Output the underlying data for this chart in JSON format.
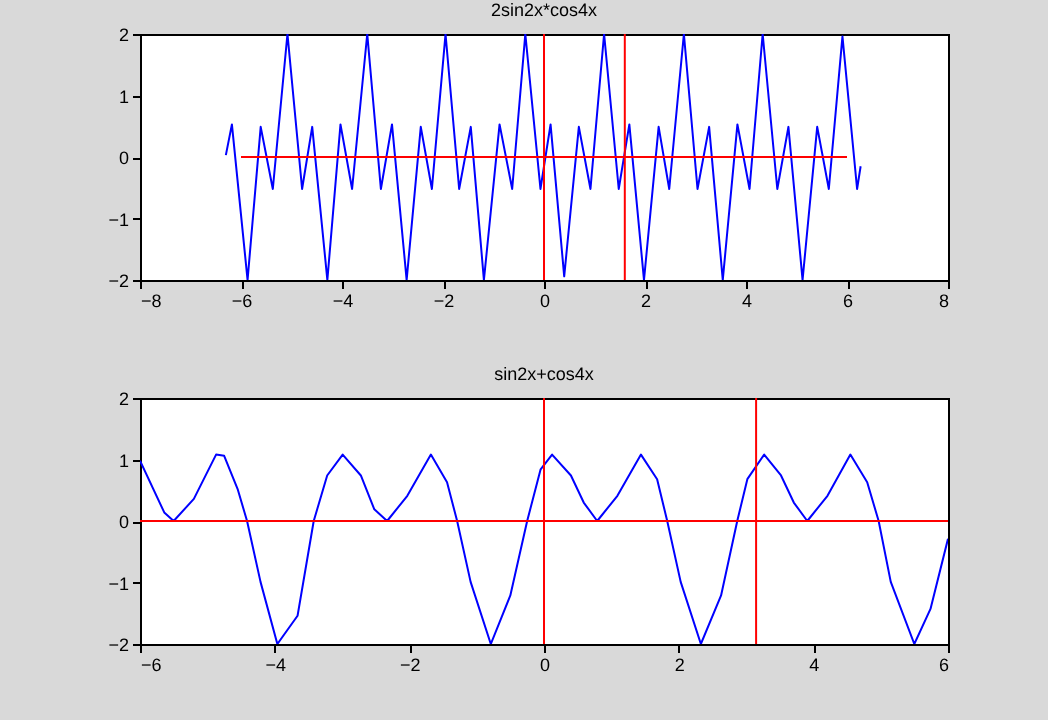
{
  "chart_data": [
    {
      "type": "line",
      "title": "2sin2x*cos4x",
      "xlim": [
        -8,
        8
      ],
      "xticks": [
        -8,
        -6,
        -4,
        -2,
        0,
        2,
        4,
        6,
        8
      ],
      "ylim": [
        -2,
        2
      ],
      "yticks": [
        -2,
        -1,
        0,
        1,
        2
      ],
      "grid": false,
      "series": [
        {
          "color": "#0000ff",
          "x": [
            -6.3,
            -6.18,
            -5.87,
            -5.61,
            -5.37,
            -5.08,
            -4.79,
            -4.59,
            -4.29,
            -4.03,
            -3.8,
            -3.5,
            -3.23,
            -3.01,
            -2.72,
            -2.44,
            -2.22,
            -1.95,
            -1.68,
            -1.45,
            -1.19,
            -0.88,
            -0.63,
            -0.37,
            -0.07,
            0.13,
            0.4,
            0.69,
            0.92,
            1.19,
            1.48,
            1.69,
            1.98,
            2.27,
            2.48,
            2.77,
            3.04,
            3.27,
            3.54,
            3.83,
            4.07,
            4.33,
            4.62,
            4.84,
            5.12,
            5.41,
            5.64,
            5.91,
            6.2,
            6.27
          ],
          "values": [
            0.03,
            0.53,
            -2,
            0.49,
            -0.52,
            2,
            -0.52,
            0.49,
            -2,
            0.53,
            -0.52,
            2,
            -0.52,
            0.53,
            -2,
            0.49,
            -0.52,
            2,
            -0.52,
            0.49,
            -2,
            0.53,
            -0.52,
            2,
            -0.52,
            0.53,
            -1.94,
            0.49,
            -0.52,
            2,
            -0.52,
            0.53,
            -2,
            0.49,
            -0.52,
            2,
            -0.52,
            0.49,
            -2,
            0.53,
            -0.52,
            2,
            -0.52,
            0.49,
            -2,
            0.49,
            -0.52,
            1.96,
            -0.52,
            -0.15
          ]
        },
        {
          "color": "#ff0000",
          "x": [
            -6,
            6
          ],
          "values": [
            0,
            0
          ]
        }
      ],
      "ref_lines": [
        {
          "axis": "x",
          "value": 0,
          "color": "#ff0000"
        },
        {
          "axis": "x",
          "value": 1.6,
          "color": "#ff0000"
        }
      ]
    },
    {
      "type": "line",
      "title": "sin2x+cos4x",
      "xlim": [
        -6,
        6
      ],
      "xticks": [
        -6,
        -4,
        -2,
        0,
        2,
        4,
        6
      ],
      "ylim": [
        -2,
        2
      ],
      "yticks": [
        -2,
        -1,
        0,
        1,
        2
      ],
      "grid": false,
      "series": [
        {
          "color": "#0000ff",
          "x": [
            -6,
            -5.64,
            -5.5,
            -5.2,
            -4.87,
            -4.75,
            -4.55,
            -4.41,
            -4.21,
            -3.96,
            -3.66,
            -3.42,
            -3.22,
            -2.99,
            -2.72,
            -2.52,
            -2.33,
            -2.03,
            -1.68,
            -1.44,
            -1.29,
            -1.09,
            -0.79,
            -0.5,
            -0.25,
            -0.05,
            0.12,
            0.4,
            0.59,
            0.79,
            1.09,
            1.44,
            1.68,
            1.83,
            2.03,
            2.33,
            2.63,
            2.87,
            3.02,
            3.27,
            3.52,
            3.71,
            3.91,
            4.21,
            4.55,
            4.8,
            4.97,
            5.15,
            5.5,
            5.74,
            6
          ],
          "values": [
            0.98,
            0.14,
            0,
            0.36,
            1.08,
            1.06,
            0.52,
            0,
            -0.99,
            -2,
            -1.54,
            0,
            0.74,
            1.08,
            0.74,
            0.19,
            0,
            0.41,
            1.08,
            0.63,
            0,
            -0.99,
            -2,
            -1.21,
            0,
            0.84,
            1.08,
            0.74,
            0.3,
            0,
            0.41,
            1.08,
            0.68,
            0,
            -0.99,
            -2,
            -1.21,
            0,
            0.68,
            1.08,
            0.74,
            0.3,
            0,
            0.41,
            1.08,
            0.63,
            0,
            -0.99,
            -2,
            -1.43,
            -0.29
          ]
        }
      ],
      "ref_lines": [
        {
          "axis": "y",
          "value": 0,
          "color": "#ff0000"
        },
        {
          "axis": "x",
          "value": 0,
          "color": "#ff0000"
        },
        {
          "axis": "x",
          "value": 3.15,
          "color": "#ff0000"
        }
      ]
    }
  ]
}
